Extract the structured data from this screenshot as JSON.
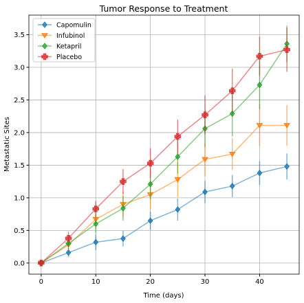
{
  "chart_data": {
    "type": "line",
    "title": "Tumor Response to Treatment",
    "xlabel": "Time (days)",
    "ylabel": "Metastatic Sites",
    "xlim": [
      -2.25,
      47.25
    ],
    "ylim": [
      -0.17,
      3.8
    ],
    "xticks": [
      0,
      10,
      20,
      30,
      40
    ],
    "yticks": [
      0.0,
      0.5,
      1.0,
      1.5,
      2.0,
      2.5,
      3.0,
      3.5
    ],
    "ytick_labels": [
      "0.0",
      "0.5",
      "1.0",
      "1.5",
      "2.0",
      "2.5",
      "3.0",
      "3.5"
    ],
    "grid": true,
    "legend_position": "top-left",
    "x": [
      0,
      5,
      10,
      15,
      20,
      25,
      30,
      35,
      40,
      45
    ],
    "series": [
      {
        "name": "Capomulin",
        "color": "#1f77b4",
        "marker": "diamond",
        "values": [
          0.0,
          0.16,
          0.32,
          0.375,
          0.65,
          0.82,
          1.09,
          1.18,
          1.38,
          1.48
        ],
        "errors": [
          0.0,
          0.07,
          0.12,
          0.12,
          0.14,
          0.17,
          0.17,
          0.17,
          0.18,
          0.2
        ]
      },
      {
        "name": "Infubinol",
        "color": "#ff7f0e",
        "marker": "triangle-down",
        "values": [
          0.0,
          0.28,
          0.67,
          0.9,
          1.05,
          1.28,
          1.59,
          1.67,
          2.11,
          2.11
        ],
        "errors": [
          0.0,
          0.09,
          0.15,
          0.19,
          0.23,
          0.27,
          0.26,
          0.24,
          0.32,
          0.31
        ]
      },
      {
        "name": "Ketapril",
        "color": "#2ca02c",
        "marker": "diamond",
        "values": [
          0.0,
          0.3,
          0.6,
          0.84,
          1.21,
          1.63,
          2.06,
          2.29,
          2.73,
          3.36
        ],
        "errors": [
          0.0,
          0.1,
          0.14,
          0.19,
          0.24,
          0.26,
          0.28,
          0.35,
          0.37,
          0.28
        ]
      },
      {
        "name": "Placebo",
        "color": "#d62728",
        "marker": "plus",
        "values": [
          0.0,
          0.38,
          0.83,
          1.25,
          1.53,
          1.94,
          2.27,
          2.64,
          3.17,
          3.27
        ],
        "errors": [
          0.0,
          0.1,
          0.12,
          0.19,
          0.23,
          0.26,
          0.3,
          0.34,
          0.3,
          0.34
        ]
      }
    ]
  }
}
